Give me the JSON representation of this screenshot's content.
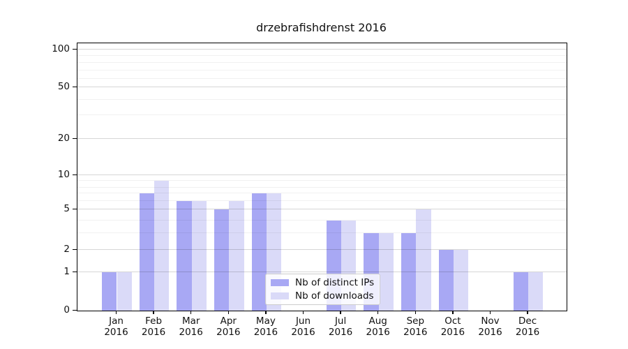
{
  "chart_data": {
    "type": "bar",
    "title": "drzebrafishdrenst 2016",
    "categories": [
      "Jan",
      "Feb",
      "Mar",
      "Apr",
      "May",
      "Jun",
      "Jul",
      "Aug",
      "Sep",
      "Oct",
      "Nov",
      "Dec"
    ],
    "category_year": "2016",
    "series": [
      {
        "name": "Nb of distinct IPs",
        "color": "#a8a8f4",
        "values": [
          1,
          7,
          6,
          5,
          7,
          0,
          4,
          3,
          3,
          2,
          0,
          1
        ]
      },
      {
        "name": "Nb of downloads",
        "color": "#dadaf8",
        "values": [
          1,
          9,
          6,
          6,
          7,
          0,
          4,
          3,
          5,
          2,
          0,
          1
        ]
      }
    ],
    "yticks": [
      0,
      1,
      2,
      5,
      10,
      20,
      50,
      100
    ],
    "ylim": [
      0,
      115
    ],
    "yscale": "log-like",
    "grid": true,
    "legend_position": "bottom-center",
    "xlabel": "",
    "ylabel": ""
  },
  "colors": {
    "background": "#ffffff",
    "axis": "#000000",
    "grid_major": "rgba(0,0,0,0.16)",
    "grid_minor": "rgba(0,0,0,0.055)",
    "text": "#111111"
  }
}
